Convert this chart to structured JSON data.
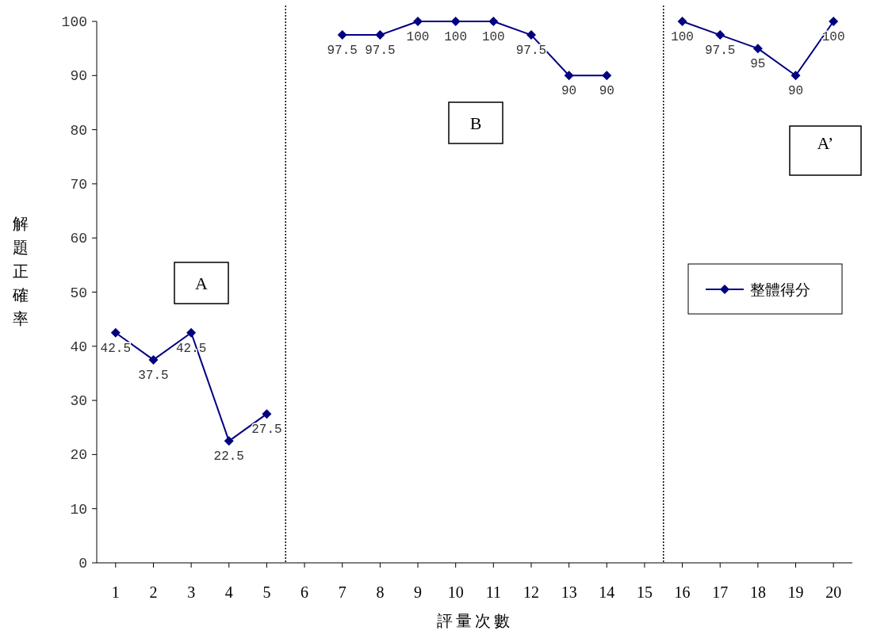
{
  "chart_data": {
    "type": "line",
    "xlabel": "評量次數",
    "ylabel": "解題正確率",
    "x": [
      1,
      2,
      3,
      4,
      5,
      6,
      7,
      8,
      9,
      10,
      11,
      12,
      13,
      14,
      15,
      16,
      17,
      18,
      19,
      20
    ],
    "xlim": [
      0.5,
      20.5
    ],
    "xticks": [
      1,
      2,
      3,
      4,
      5,
      6,
      7,
      8,
      9,
      10,
      11,
      12,
      13,
      14,
      15,
      16,
      17,
      18,
      19,
      20
    ],
    "ylim": [
      0,
      100
    ],
    "yticks": [
      0,
      10,
      20,
      30,
      40,
      50,
      60,
      70,
      80,
      90,
      100
    ],
    "series": [
      {
        "name": "整體得分",
        "color": "#000080",
        "values": [
          42.5,
          37.5,
          42.5,
          22.5,
          27.5,
          null,
          97.5,
          97.5,
          100,
          100,
          100,
          97.5,
          90,
          90,
          null,
          100,
          97.5,
          95,
          90,
          100
        ]
      }
    ],
    "data_labels": true,
    "marker": "diamond",
    "legend": "right",
    "grid": false,
    "ref_lines": [
      {
        "axis": "x",
        "value": 5.5,
        "color": "#000000",
        "line_style": "dotted"
      },
      {
        "axis": "x",
        "value": 15.5,
        "color": "#000000",
        "line_style": "dotted"
      }
    ],
    "annotations": [
      "A",
      "B",
      "A’"
    ]
  }
}
